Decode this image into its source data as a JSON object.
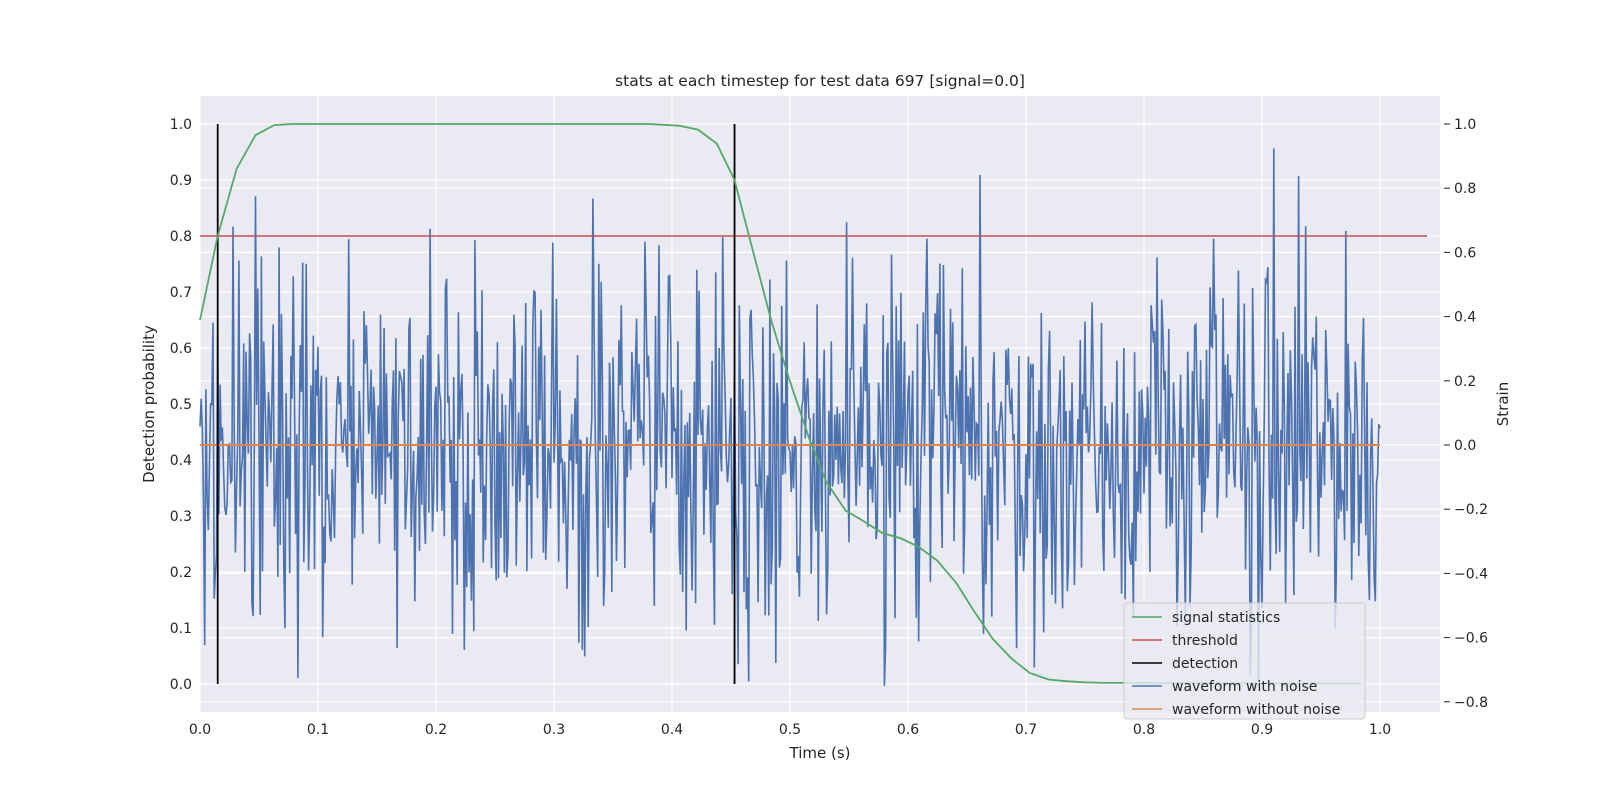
{
  "chart_data": {
    "type": "line",
    "title": "stats at each timestep for test data 697 [signal=0.0]",
    "xlabel": "Time (s)",
    "ylabel_left": "Detection probability",
    "ylabel_right": "Strain",
    "xlim": [
      0.0,
      1.05
    ],
    "ylim_left": [
      -0.045,
      1.05
    ],
    "ylim_right": [
      -0.82,
      1.07
    ],
    "x_ticks": [
      "0.0",
      "0.1",
      "0.2",
      "0.3",
      "0.4",
      "0.5",
      "0.6",
      "0.7",
      "0.8",
      "0.9",
      "1.0"
    ],
    "y_ticks_left": [
      "0.0",
      "0.1",
      "0.2",
      "0.3",
      "0.4",
      "0.5",
      "0.6",
      "0.7",
      "0.8",
      "0.9",
      "1.0"
    ],
    "y_ticks_right": [
      "−0.8",
      "−0.6",
      "−0.4",
      "−0.2",
      "0.0",
      "0.2",
      "0.4",
      "0.6",
      "0.8",
      "1.0"
    ],
    "grid": true,
    "legend_position": "lower-right",
    "series": [
      {
        "name": "signal statistics",
        "axis": "left",
        "color": "#55a868",
        "x": [
          0.0,
          0.015,
          0.031,
          0.047,
          0.063,
          0.078,
          0.094,
          0.2,
          0.3,
          0.38,
          0.406,
          0.422,
          0.438,
          0.453,
          0.469,
          0.484,
          0.5,
          0.516,
          0.531,
          0.547,
          0.563,
          0.578,
          0.594,
          0.609,
          0.625,
          0.641,
          0.656,
          0.672,
          0.688,
          0.703,
          0.719,
          0.734,
          0.75,
          0.766,
          0.8,
          0.9,
          0.984
        ],
        "y": [
          0.65,
          0.8,
          0.92,
          0.98,
          0.998,
          1.0,
          1.0,
          1.0,
          1.0,
          1.0,
          0.997,
          0.99,
          0.965,
          0.9,
          0.77,
          0.65,
          0.54,
          0.44,
          0.36,
          0.31,
          0.29,
          0.27,
          0.26,
          0.245,
          0.22,
          0.18,
          0.13,
          0.08,
          0.045,
          0.02,
          0.008,
          0.005,
          0.003,
          0.002,
          0.002,
          0.001,
          0.001
        ]
      },
      {
        "name": "threshold",
        "axis": "left",
        "color": "#c44e52",
        "x": [
          0.0,
          1.04
        ],
        "y": [
          0.8,
          0.8
        ]
      },
      {
        "name": "detection",
        "axis": "left",
        "color": "#000000",
        "x": [
          0.015,
          0.453
        ],
        "y": [
          1.0,
          1.0
        ]
      },
      {
        "name": "waveform with noise",
        "axis": "right",
        "color": "#4c72b0",
        "x": [
          0.0,
          1.0
        ],
        "y_range": [
          -0.75,
          1.0
        ]
      },
      {
        "name": "waveform without noise",
        "axis": "right",
        "color": "#dd8452",
        "x": [
          0.0,
          1.0
        ],
        "y": [
          0.0,
          0.0
        ]
      }
    ]
  }
}
